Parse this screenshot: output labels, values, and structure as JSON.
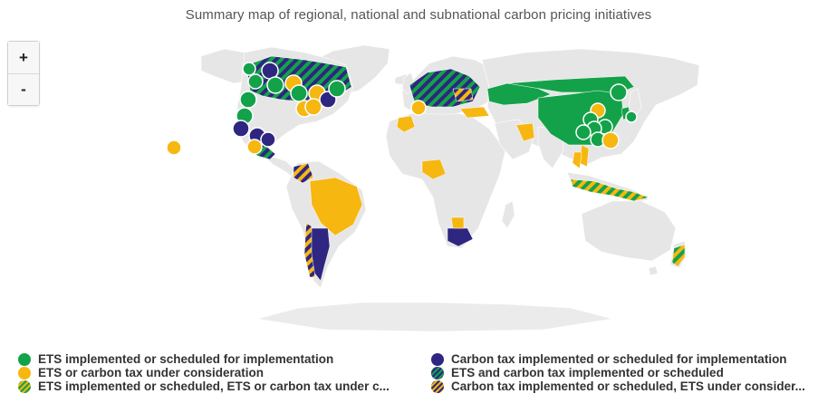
{
  "title": "Summary map of regional, national and subnational carbon pricing initiatives",
  "zoom": {
    "in_label": "+",
    "out_label": "-"
  },
  "colors": {
    "ets": "#13a24a",
    "consideration": "#f6b711",
    "tax": "#2e2680",
    "land": "#e6e6e6",
    "antarctica": "#ebebeb"
  },
  "legend": [
    {
      "label": "ETS implemented or scheduled for implementation",
      "swatch": "ets"
    },
    {
      "label": "Carbon tax implemented or scheduled for implementation",
      "swatch": "tax"
    },
    {
      "label": "ETS or carbon tax under consideration",
      "swatch": "consideration"
    },
    {
      "label": "ETS and carbon tax implemented or scheduled",
      "swatch": "ets-tax"
    },
    {
      "label": "ETS implemented or scheduled, ETS or carbon tax under c...",
      "swatch": "ets-consideration"
    },
    {
      "label": "Carbon tax implemented or scheduled, ETS under consider...",
      "swatch": "tax-consideration"
    }
  ]
}
